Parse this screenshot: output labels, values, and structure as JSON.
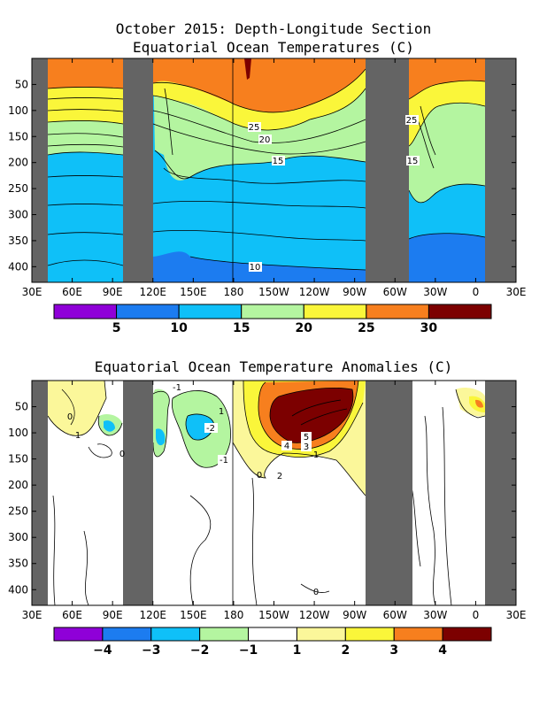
{
  "chart_data": [
    {
      "type": "heatmap",
      "title": "October 2015: Depth-Longitude Section",
      "subtitle": "Equatorial Ocean Temperatures (C)",
      "x_ticks": [
        "30E",
        "60E",
        "90E",
        "120E",
        "150E",
        "180",
        "150W",
        "120W",
        "90W",
        "60W",
        "30W",
        "0",
        "30E"
      ],
      "y_ticks": [
        50,
        100,
        150,
        200,
        250,
        300,
        350,
        400
      ],
      "ylim": [
        430,
        0
      ],
      "land_masked": [
        "30E-42E",
        "92E-118E",
        "80W-45W",
        "10E-30E"
      ],
      "colorbar": {
        "ticks": [
          "5",
          "10",
          "15",
          "20",
          "25",
          "30"
        ],
        "colors": [
          "#8f00d8",
          "#1c7cf0",
          "#0fc0f8",
          "#b4f5a0",
          "#faf63a",
          "#f77f1e",
          "#7c0000"
        ]
      },
      "contour_labels": [
        "25",
        "20",
        "15",
        "10",
        "25",
        "15"
      ]
    },
    {
      "type": "heatmap",
      "title": "Equatorial Ocean Temperature Anomalies (C)",
      "x_ticks": [
        "30E",
        "60E",
        "90E",
        "120E",
        "150E",
        "180",
        "150W",
        "120W",
        "90W",
        "60W",
        "30W",
        "0",
        "30E"
      ],
      "y_ticks": [
        50,
        100,
        150,
        200,
        250,
        300,
        350,
        400
      ],
      "ylim": [
        430,
        0
      ],
      "land_masked": [
        "30E-42E",
        "92E-118E",
        "80W-45W",
        "10E-30E"
      ],
      "colorbar": {
        "ticks": [
          "-4",
          "-3",
          "-2",
          "-1",
          "1",
          "2",
          "3",
          "4"
        ],
        "colors": [
          "#8f00d8",
          "#1c7cf0",
          "#0fc0f8",
          "#b4f5a0",
          "#ffffff",
          "#fbf79a",
          "#faf63a",
          "#f77f1e",
          "#7c0000"
        ]
      },
      "contour_labels": [
        "0",
        "1",
        "0",
        "-1",
        "-2",
        "-1",
        "1",
        "0",
        "2",
        "5",
        "4",
        "3",
        "1",
        "0"
      ]
    }
  ]
}
